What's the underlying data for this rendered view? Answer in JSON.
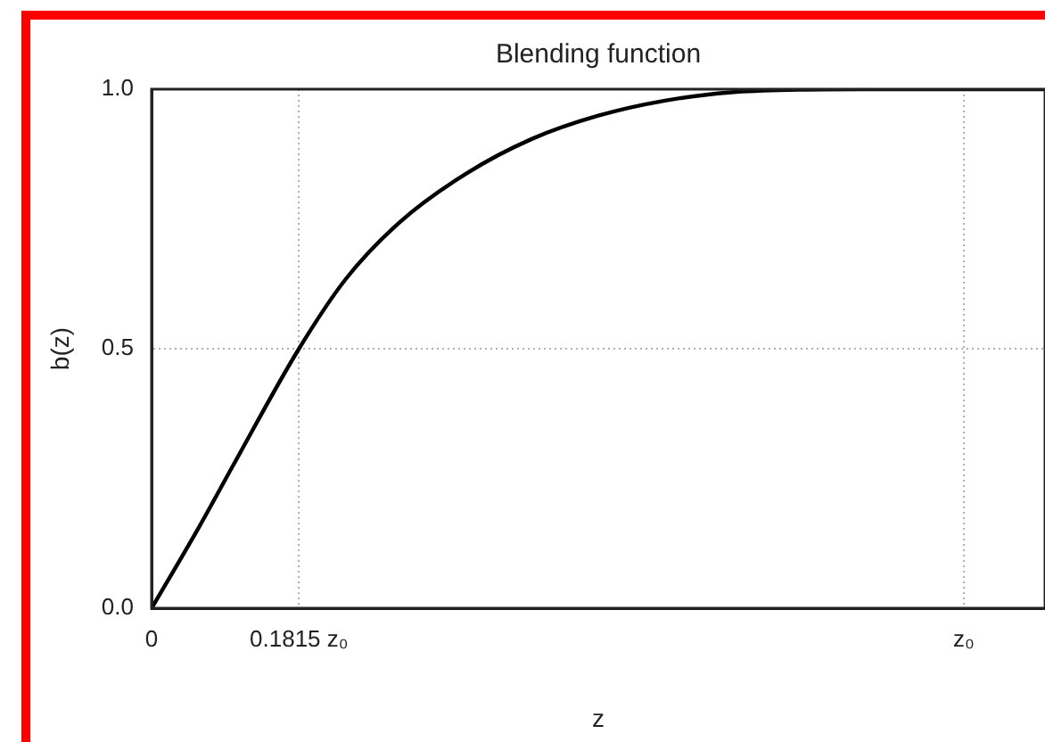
{
  "chart_data": {
    "type": "line",
    "title": "Blending function",
    "xlabel": "z",
    "ylabel": "b(z)",
    "x": [
      0,
      0.059,
      0.1,
      0.1815,
      0.239,
      0.305,
      0.387,
      0.468,
      0.55,
      0.632,
      0.714,
      0.796,
      0.878,
      1.0,
      1.1
    ],
    "series": [
      {
        "color": "#000000",
        "values": [
          0,
          0.158,
          0.274,
          0.5,
          0.634,
          0.743,
          0.837,
          0.904,
          0.949,
          0.978,
          0.994,
          0.999,
          1.0,
          1.0,
          1.0
        ]
      }
    ],
    "xlim": [
      0,
      1.1
    ],
    "ylim": [
      0,
      1.0
    ],
    "xticks": [
      0,
      {
        "value": 0.1815,
        "label": "0.1815 z₀"
      },
      {
        "value": 1.0,
        "label": "z₀"
      }
    ],
    "yticks": [
      {
        "value": 0,
        "label": "0.0"
      },
      {
        "value": 0.5,
        "label": "0.5"
      },
      {
        "value": 1.0,
        "label": "1.0"
      }
    ],
    "grid": true,
    "legend": false,
    "marker": "none",
    "line_style": "solid"
  }
}
